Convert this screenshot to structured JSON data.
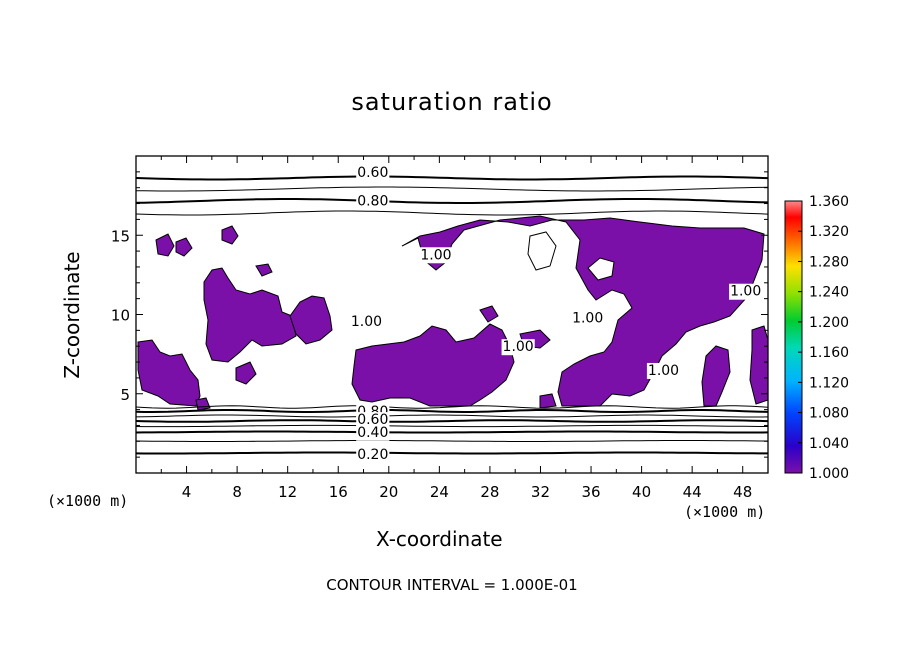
{
  "chart_data": {
    "type": "heatmap",
    "title": "saturation ratio",
    "xlabel": "X-coordinate",
    "ylabel": "Z-coordinate",
    "x_unit": "(×1000 m)",
    "z_unit": "(×1000 m)",
    "xlim": [
      0,
      50
    ],
    "ylim": [
      0,
      20
    ],
    "x_ticks": [
      4,
      8,
      12,
      16,
      20,
      24,
      28,
      32,
      36,
      40,
      44,
      48
    ],
    "y_ticks": [
      5,
      10,
      15
    ],
    "contour_labels": [
      {
        "text": "0.60",
        "x": 17.5,
        "y": 19.0
      },
      {
        "text": "0.80",
        "x": 17.5,
        "y": 17.2
      },
      {
        "text": "1.00",
        "x": 22.5,
        "y": 13.8
      },
      {
        "text": "1.00",
        "x": 17.0,
        "y": 9.6
      },
      {
        "text": "1.00",
        "x": 29.0,
        "y": 8.0
      },
      {
        "text": "1.00",
        "x": 34.5,
        "y": 9.8
      },
      {
        "text": "1.00",
        "x": 40.5,
        "y": 6.5
      },
      {
        "text": "1.00",
        "x": 47.0,
        "y": 11.5
      },
      {
        "text": "0.80",
        "x": 17.5,
        "y": 3.9
      },
      {
        "text": "0.60",
        "x": 17.5,
        "y": 3.4
      },
      {
        "text": "0.40",
        "x": 17.5,
        "y": 2.6
      },
      {
        "text": "0.20",
        "x": 17.5,
        "y": 1.2
      }
    ],
    "colorbar": {
      "range": [
        1.0,
        1.36
      ],
      "tick_labels": [
        "1.360",
        "1.320",
        "1.280",
        "1.240",
        "1.200",
        "1.160",
        "1.120",
        "1.080",
        "1.040",
        "1.000"
      ]
    },
    "supersaturated_color": "#7a10a8",
    "contour_interval_text": "CONTOUR INTERVAL = 1.000E-01"
  }
}
